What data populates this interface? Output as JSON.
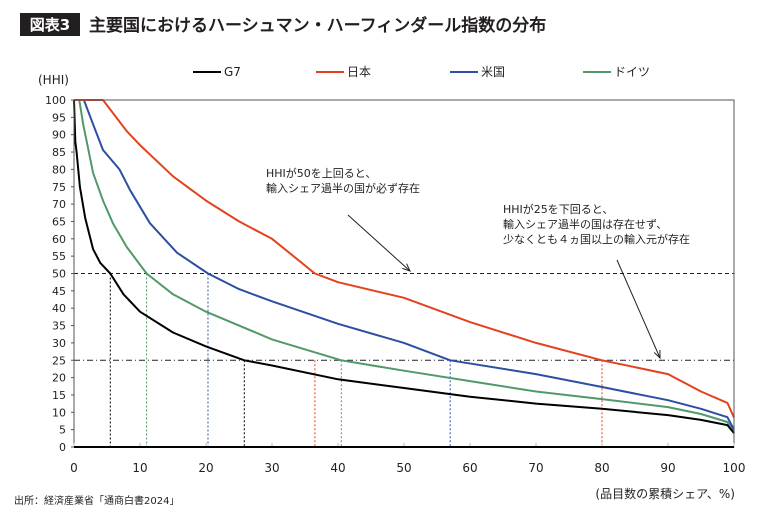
{
  "figure_label": "図表3",
  "title": "主要国におけるハーシュマン・ハーフィンダール指数の分布",
  "source": "出所：経済産業省「通商白書2024」",
  "chart_data": {
    "type": "line",
    "title": "主要国におけるハーシュマン・ハーフィンダール指数の分布",
    "ylabel": "(HHI)",
    "xlabel": "(品目数の累積シェア、%)",
    "xlim": [
      0,
      100
    ],
    "ylim": [
      0,
      100
    ],
    "xticks": [
      "0",
      "10",
      "20",
      "30",
      "40",
      "50",
      "60",
      "70",
      "80",
      "90",
      "100"
    ],
    "yticks": [
      "0",
      "5",
      "10",
      "15",
      "20",
      "25",
      "30",
      "35",
      "40",
      "45",
      "50",
      "55",
      "60",
      "65",
      "70",
      "75",
      "80",
      "85",
      "90",
      "95",
      "100"
    ],
    "grid": false,
    "legend_position": "top",
    "series": [
      {
        "name": "G7",
        "color": "#000000",
        "x": [
          0,
          0.2,
          0.4,
          0.9,
          1.7,
          2.9,
          4,
          5.5,
          7.5,
          10,
          15,
          20,
          25.8,
          30,
          40,
          50,
          60,
          70,
          80,
          90,
          95,
          99,
          100
        ],
        "y": [
          100,
          88,
          85,
          75,
          66,
          57,
          53,
          50,
          44,
          39,
          33,
          29,
          25,
          23.5,
          19.5,
          17,
          14.5,
          12.5,
          11,
          9.2,
          7.8,
          6.3,
          4
        ]
      },
      {
        "name": "日本",
        "color": "#e2431e",
        "x": [
          0,
          4.4,
          8,
          10,
          15,
          20,
          25,
          30,
          36.5,
          40,
          50,
          60,
          70,
          80,
          90,
          95,
          99,
          100
        ],
        "y": [
          100,
          100,
          91,
          87,
          78,
          71,
          65,
          60,
          50,
          47.5,
          43,
          36,
          30,
          25,
          21,
          16,
          12.7,
          8.5
        ]
      },
      {
        "name": "米国",
        "color": "#2c4ea3",
        "x": [
          0,
          1.5,
          2.9,
          4.4,
          6.9,
          8.5,
          11.5,
          15.6,
          20.3,
          25,
          30,
          40,
          50,
          57,
          70,
          80,
          90,
          95,
          99,
          100
        ],
        "y": [
          100,
          100,
          93,
          85.6,
          80,
          74,
          64.5,
          56,
          50,
          45.5,
          42,
          35.5,
          30,
          25,
          21,
          17.3,
          13.5,
          11,
          8.6,
          5
        ]
      },
      {
        "name": "ドイツ",
        "color": "#4f9a68",
        "x": [
          0,
          0.8,
          1.4,
          2.9,
          4.4,
          5.9,
          8,
          11,
          15,
          20,
          30,
          40.5,
          50,
          60,
          70,
          80,
          90,
          95,
          99,
          100
        ],
        "y": [
          100,
          100,
          93,
          79,
          71,
          64.5,
          57.6,
          50,
          44,
          39,
          31,
          25,
          22,
          19,
          16,
          13.8,
          11.5,
          9.5,
          7.2,
          4
        ]
      }
    ],
    "reference_lines": {
      "horizontal": [
        50,
        25
      ],
      "vertical": [
        {
          "x": 5.5,
          "series": "G7"
        },
        {
          "x": 11,
          "series": "ドイツ"
        },
        {
          "x": 20.3,
          "series": "米国"
        },
        {
          "x": 25.8,
          "series": "G7"
        },
        {
          "x": 36.5,
          "series": "日本"
        },
        {
          "x": 40.5,
          "series": "ドイツ"
        },
        {
          "x": 57,
          "series": "米国"
        },
        {
          "x": 80,
          "series": "日本"
        }
      ]
    },
    "annotations": [
      {
        "lines": [
          "HHIが50を上回ると、",
          "輸入シェア過半の国が必ず存在"
        ],
        "points_to_y": 50
      },
      {
        "lines": [
          "HHIが25を下回ると、",
          "輸入シェア過半の国は存在せず、",
          "少なくとも４ヵ国以上の輸入元が存在"
        ],
        "points_to_y": 25
      }
    ]
  }
}
